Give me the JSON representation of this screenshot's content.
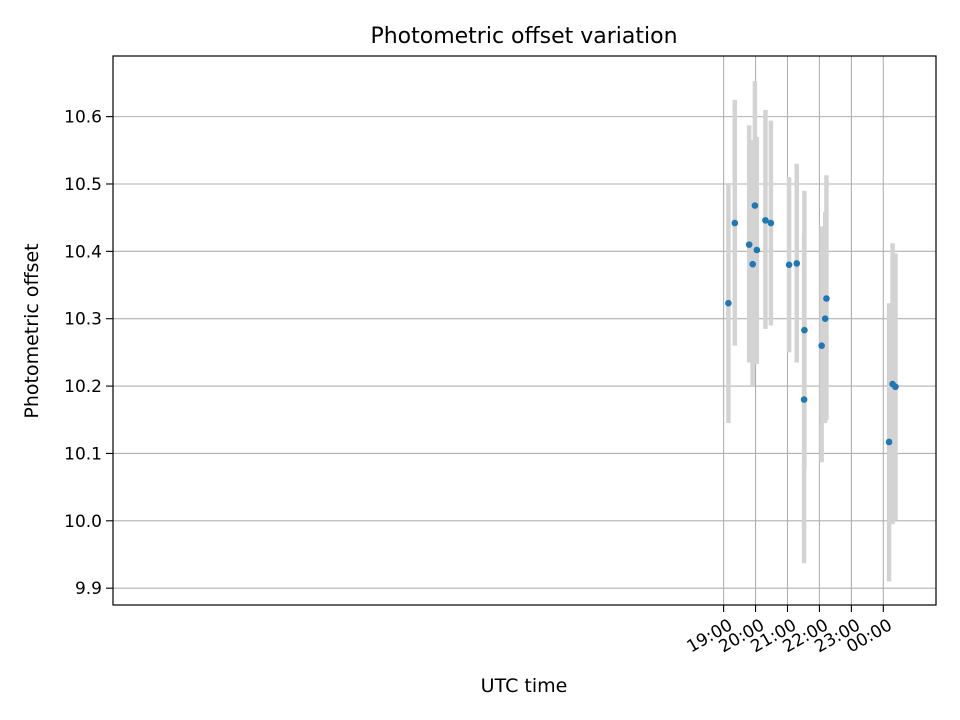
{
  "chart_data": {
    "type": "scatter",
    "title": "Photometric offset variation",
    "xlabel": "UTC time",
    "ylabel": "Photometric offset",
    "xlim_hours": [
      -0.12,
      25.65
    ],
    "ylim": [
      9.875,
      10.69
    ],
    "x_ticks": [
      {
        "hour": 19,
        "label": "19:00"
      },
      {
        "hour": 20,
        "label": "20:00"
      },
      {
        "hour": 21,
        "label": "21:00"
      },
      {
        "hour": 22,
        "label": "22:00"
      },
      {
        "hour": 23,
        "label": "23:00"
      },
      {
        "hour": 24,
        "label": "00:00"
      }
    ],
    "y_ticks": [
      {
        "value": 9.9,
        "label": "9.9"
      },
      {
        "value": 10.0,
        "label": "10.0"
      },
      {
        "value": 10.1,
        "label": "10.1"
      },
      {
        "value": 10.2,
        "label": "10.2"
      },
      {
        "value": 10.3,
        "label": "10.3"
      },
      {
        "value": 10.4,
        "label": "10.4"
      },
      {
        "value": 10.5,
        "label": "10.5"
      },
      {
        "value": 10.6,
        "label": "10.6"
      }
    ],
    "grid": true,
    "series": [
      {
        "name": "offset",
        "point_color": "#1f77b4",
        "errorbar_color": "#d3d3d3",
        "points": [
          {
            "x": 19.15,
            "y": 10.323,
            "err_low": 10.145,
            "err_high": 10.5
          },
          {
            "x": 19.35,
            "y": 10.442,
            "err_low": 10.26,
            "err_high": 10.625
          },
          {
            "x": 19.8,
            "y": 10.41,
            "err_low": 10.235,
            "err_high": 10.587
          },
          {
            "x": 19.91,
            "y": 10.381,
            "err_low": 10.2,
            "err_high": 10.565
          },
          {
            "x": 19.98,
            "y": 10.468,
            "err_low": 10.282,
            "err_high": 10.653
          },
          {
            "x": 20.04,
            "y": 10.402,
            "err_low": 10.233,
            "err_high": 10.57
          },
          {
            "x": 20.31,
            "y": 10.446,
            "err_low": 10.285,
            "err_high": 10.61
          },
          {
            "x": 20.48,
            "y": 10.442,
            "err_low": 10.29,
            "err_high": 10.594
          },
          {
            "x": 21.05,
            "y": 10.38,
            "err_low": 10.25,
            "err_high": 10.51
          },
          {
            "x": 21.29,
            "y": 10.382,
            "err_low": 10.235,
            "err_high": 10.53
          },
          {
            "x": 21.52,
            "y": 10.18,
            "err_low": 9.937,
            "err_high": 10.425
          },
          {
            "x": 21.53,
            "y": 10.283,
            "err_low": 10.078,
            "err_high": 10.49
          },
          {
            "x": 22.07,
            "y": 10.26,
            "err_low": 10.087,
            "err_high": 10.437
          },
          {
            "x": 22.18,
            "y": 10.3,
            "err_low": 10.145,
            "err_high": 10.458
          },
          {
            "x": 22.22,
            "y": 10.33,
            "err_low": 10.15,
            "err_high": 10.513
          },
          {
            "x": 24.18,
            "y": 10.117,
            "err_low": 9.91,
            "err_high": 10.323
          },
          {
            "x": 24.29,
            "y": 10.203,
            "err_low": 9.995,
            "err_high": 10.412
          },
          {
            "x": 24.38,
            "y": 10.199,
            "err_low": 10.0,
            "err_high": 10.397
          }
        ]
      }
    ]
  }
}
